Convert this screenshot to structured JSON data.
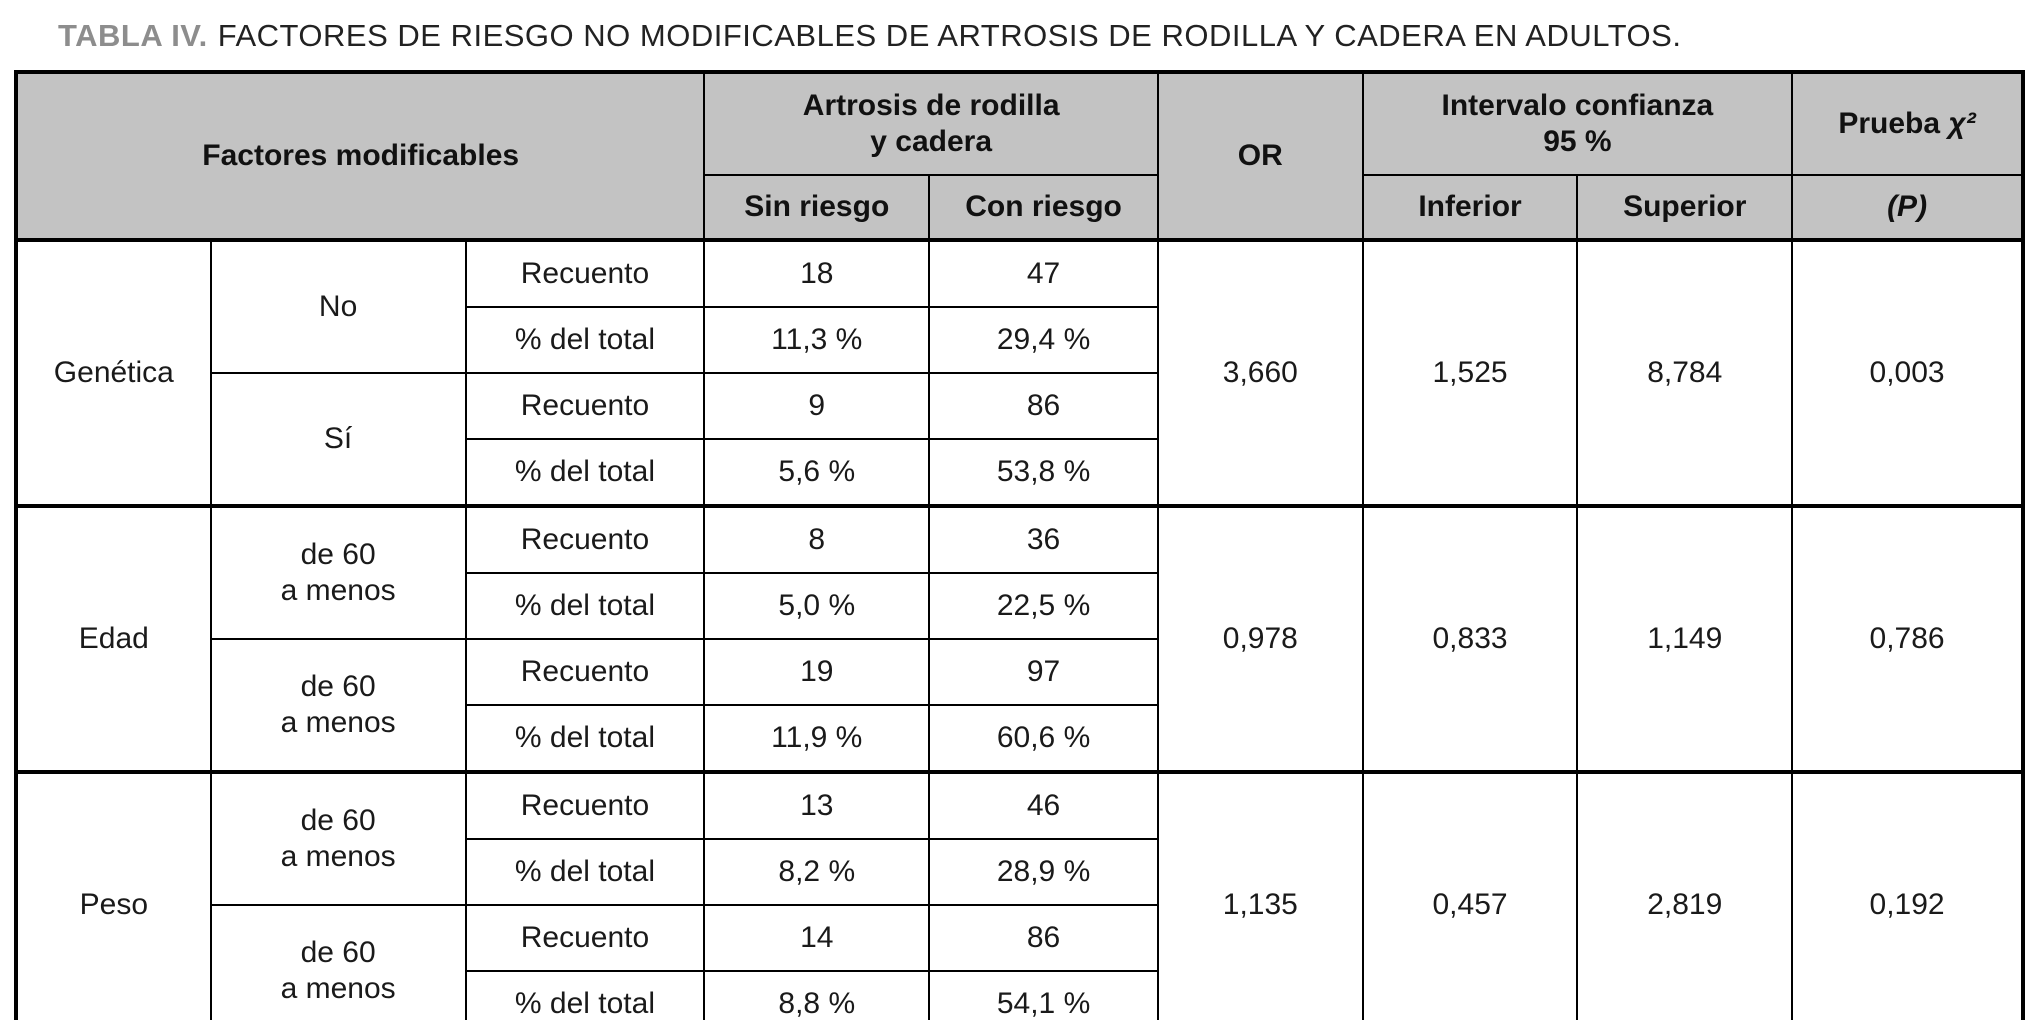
{
  "title": {
    "label": "TABLA IV.",
    "text": "FACTORES DE RIESGO NO MODIFICABLES DE ARTROSIS DE RODILLA Y CADERA EN ADULTOS."
  },
  "colors": {
    "header_background": "#c3c3c3",
    "title_label_gray": "#8d8d8d",
    "border_black": "#000000"
  },
  "table": {
    "header": {
      "factores": "Factores modificables",
      "artrosis": "Artrosis de rodilla\ny cadera",
      "or": "OR",
      "intervalo": "Intervalo confianza\n95 %",
      "prueba": "Prueba",
      "chi": "χ²",
      "sin_riesgo": "Sin riesgo",
      "con_riesgo": "Con riesgo",
      "inferior": "Inferior",
      "superior": "Superior",
      "p": "(P)"
    },
    "measures": [
      "Recuento",
      "% del total"
    ],
    "groups": [
      {
        "factor": "Genética",
        "or": "3,660",
        "inferior": "1,525",
        "superior": "8,784",
        "p": "0,003",
        "levels": [
          {
            "label": "No",
            "recuento_sin": "18",
            "recuento_con": "47",
            "pct_sin": "11,3 %",
            "pct_con": "29,4 %"
          },
          {
            "label": "Sí",
            "recuento_sin": "9",
            "recuento_con": "86",
            "pct_sin": "5,6 %",
            "pct_con": "53,8 %"
          }
        ]
      },
      {
        "factor": "Edad",
        "or": "0,978",
        "inferior": "0,833",
        "superior": "1,149",
        "p": "0,786",
        "levels": [
          {
            "label": "de 60\na menos",
            "recuento_sin": "8",
            "recuento_con": "36",
            "pct_sin": "5,0 %",
            "pct_con": "22,5 %"
          },
          {
            "label": "de 60\na menos",
            "recuento_sin": "19",
            "recuento_con": "97",
            "pct_sin": "11,9 %",
            "pct_con": "60,6 %"
          }
        ]
      },
      {
        "factor": "Peso",
        "or": "1,135",
        "inferior": "0,457",
        "superior": "2,819",
        "p": "0,192",
        "levels": [
          {
            "label": "de 60\na menos",
            "recuento_sin": "13",
            "recuento_con": "46",
            "pct_sin": "8,2 %",
            "pct_con": "28,9 %"
          },
          {
            "label": "de 60\na menos",
            "recuento_sin": "14",
            "recuento_con": "86",
            "pct_sin": "8,8 %",
            "pct_con": "54,1 %"
          }
        ]
      }
    ]
  }
}
